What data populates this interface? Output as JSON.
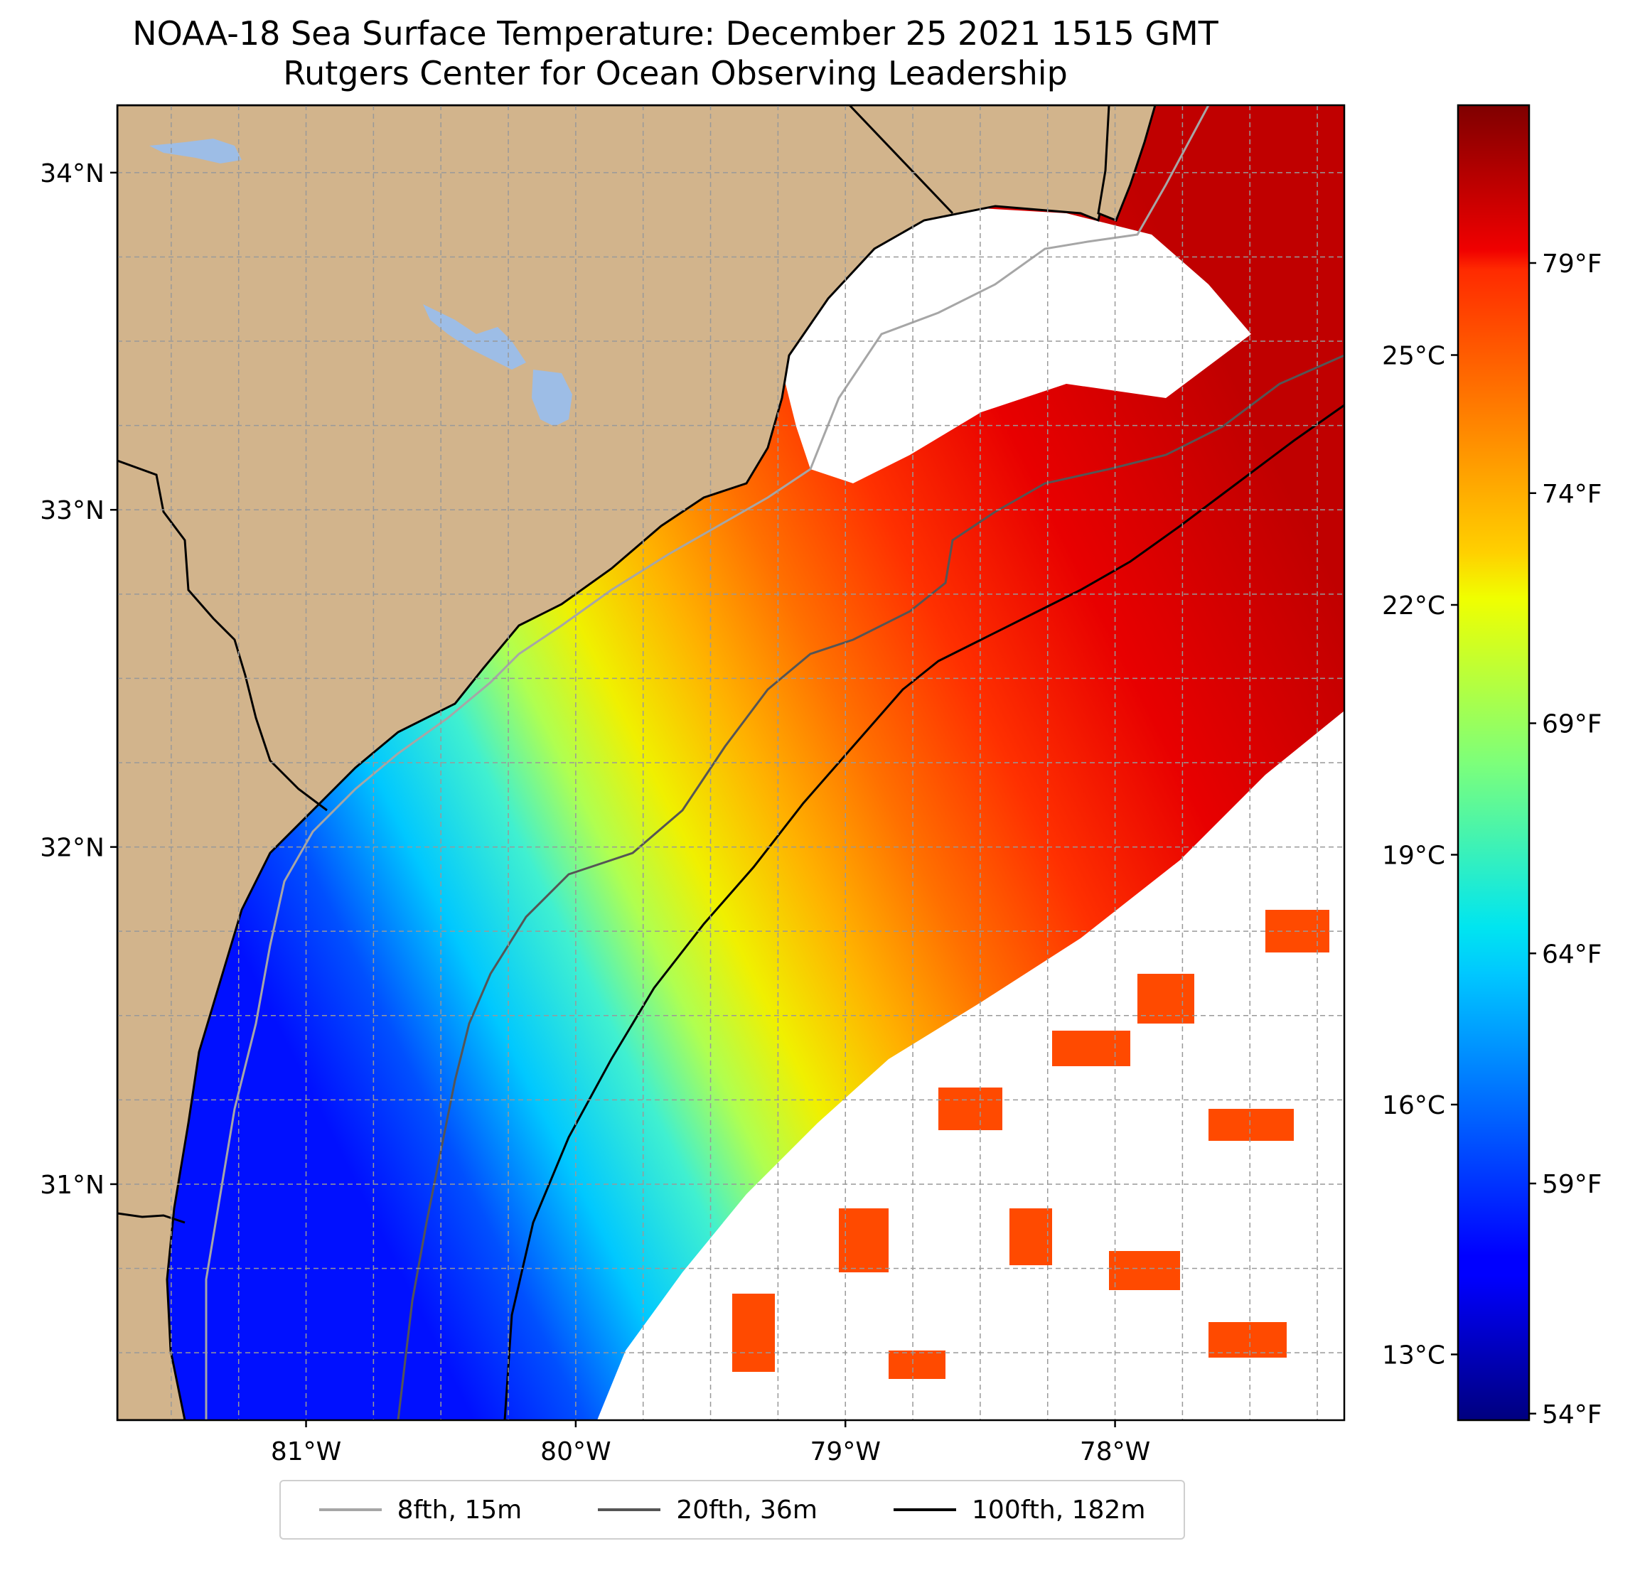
{
  "title": {
    "line1": "NOAA-18 Sea Surface Temperature: December 25 2021 1515 GMT",
    "line2": "Rutgers Center for Ocean Observing Leadership"
  },
  "map": {
    "lat_range": [
      30.3,
      34.2
    ],
    "lon_range": [
      -81.7,
      -77.15
    ],
    "lat_ticks": [
      {
        "value": 34,
        "label": "34°N"
      },
      {
        "value": 33,
        "label": "33°N"
      },
      {
        "value": 32,
        "label": "32°N"
      },
      {
        "value": 31,
        "label": "31°N"
      }
    ],
    "lon_ticks": [
      {
        "value": -81,
        "label": "81°W"
      },
      {
        "value": -80,
        "label": "80°W"
      },
      {
        "value": -79,
        "label": "79°W"
      },
      {
        "value": -78,
        "label": "78°W"
      }
    ],
    "grid": true,
    "colors": {
      "land": "#d2b48c",
      "lake": "#9dbde6",
      "no_data": "#ffffff"
    }
  },
  "colorbar": {
    "colormap": "jet",
    "fahrenheit_ticks": [
      "79°F",
      "74°F",
      "69°F",
      "64°F",
      "59°F",
      "54°F"
    ],
    "celsius_ticks": [
      "25°C",
      "22°C",
      "19°C",
      "16°C",
      "13°C"
    ]
  },
  "legend": {
    "placement": "bottom-center",
    "items": [
      {
        "label": "8fth, 15m",
        "color": "#a6a6a6"
      },
      {
        "label": "20fth, 36m",
        "color": "#555555"
      },
      {
        "label": "100fth, 182m",
        "color": "#000000"
      }
    ]
  }
}
